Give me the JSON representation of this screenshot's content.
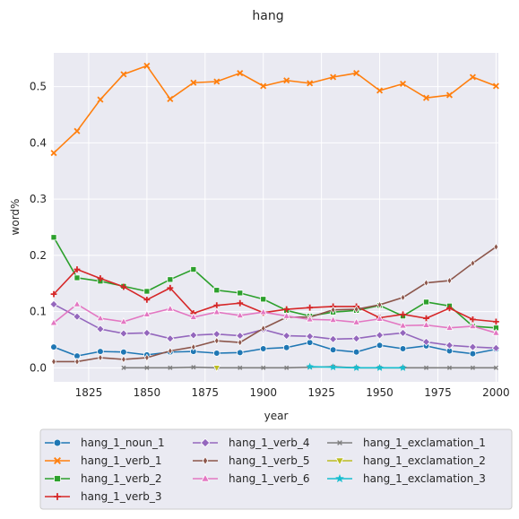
{
  "chart_data": {
    "type": "line",
    "title": "hang",
    "xlabel": "year",
    "ylabel": "word%",
    "xlim": [
      1810,
      2001
    ],
    "ylim": [
      -0.025,
      0.56
    ],
    "xticks": [
      1825,
      1850,
      1875,
      1900,
      1925,
      1950,
      1975,
      2000
    ],
    "yticks": [
      0.0,
      0.1,
      0.2,
      0.3,
      0.4,
      0.5
    ],
    "grid": true,
    "legend_position": "bottom",
    "series": [
      {
        "name": "hang_1_noun_1",
        "color": "#1f77b4",
        "marker": "circle",
        "x": [
          1810,
          1820,
          1830,
          1840,
          1850,
          1860,
          1870,
          1880,
          1890,
          1900,
          1910,
          1920,
          1930,
          1940,
          1950,
          1960,
          1970,
          1980,
          1990,
          2000
        ],
        "y": [
          0.037,
          0.021,
          0.029,
          0.028,
          0.023,
          0.028,
          0.029,
          0.026,
          0.027,
          0.034,
          0.036,
          0.045,
          0.032,
          0.028,
          0.04,
          0.034,
          0.039,
          0.03,
          0.025,
          0.033
        ]
      },
      {
        "name": "hang_1_verb_1",
        "color": "#ff7f0e",
        "marker": "x",
        "x": [
          1810,
          1820,
          1830,
          1840,
          1850,
          1860,
          1870,
          1880,
          1890,
          1900,
          1910,
          1920,
          1930,
          1940,
          1950,
          1960,
          1970,
          1980,
          1990,
          2000
        ],
        "y": [
          0.382,
          0.421,
          0.477,
          0.522,
          0.537,
          0.478,
          0.507,
          0.509,
          0.524,
          0.501,
          0.511,
          0.506,
          0.517,
          0.524,
          0.493,
          0.505,
          0.48,
          0.485,
          0.517,
          0.501
        ]
      },
      {
        "name": "hang_1_verb_2",
        "color": "#2ca02c",
        "marker": "square",
        "x": [
          1810,
          1820,
          1830,
          1840,
          1850,
          1860,
          1870,
          1880,
          1890,
          1900,
          1910,
          1920,
          1930,
          1940,
          1950,
          1960,
          1970,
          1980,
          1990,
          2000
        ],
        "y": [
          0.232,
          0.16,
          0.154,
          0.145,
          0.136,
          0.157,
          0.175,
          0.138,
          0.133,
          0.122,
          0.102,
          0.092,
          0.099,
          0.102,
          0.111,
          0.092,
          0.117,
          0.11,
          0.074,
          0.071
        ]
      },
      {
        "name": "hang_1_verb_3",
        "color": "#d62728",
        "marker": "plus",
        "x": [
          1810,
          1820,
          1830,
          1840,
          1850,
          1860,
          1870,
          1880,
          1890,
          1900,
          1910,
          1920,
          1930,
          1940,
          1950,
          1960,
          1970,
          1980,
          1990,
          2000
        ],
        "y": [
          0.131,
          0.175,
          0.159,
          0.144,
          0.121,
          0.142,
          0.097,
          0.111,
          0.115,
          0.098,
          0.104,
          0.107,
          0.109,
          0.109,
          0.089,
          0.095,
          0.088,
          0.106,
          0.086,
          0.082
        ]
      },
      {
        "name": "hang_1_verb_4",
        "color": "#9467bd",
        "marker": "diamond",
        "x": [
          1810,
          1820,
          1830,
          1840,
          1850,
          1860,
          1870,
          1880,
          1890,
          1900,
          1910,
          1920,
          1930,
          1940,
          1950,
          1960,
          1970,
          1980,
          1990,
          2000
        ],
        "y": [
          0.113,
          0.091,
          0.069,
          0.061,
          0.062,
          0.052,
          0.058,
          0.06,
          0.057,
          0.068,
          0.057,
          0.056,
          0.051,
          0.052,
          0.058,
          0.062,
          0.046,
          0.04,
          0.037,
          0.035
        ]
      },
      {
        "name": "hang_1_verb_5",
        "color": "#8c564b",
        "marker": "thin_diamond",
        "x": [
          1810,
          1820,
          1830,
          1840,
          1850,
          1860,
          1870,
          1880,
          1890,
          1900,
          1910,
          1920,
          1930,
          1940,
          1950,
          1960,
          1970,
          1980,
          1990,
          2000
        ],
        "y": [
          0.011,
          0.011,
          0.018,
          0.015,
          0.018,
          0.03,
          0.037,
          0.048,
          0.045,
          0.07,
          0.09,
          0.09,
          0.103,
          0.104,
          0.112,
          0.125,
          0.151,
          0.155,
          0.186,
          0.215
        ]
      },
      {
        "name": "hang_1_verb_6",
        "color": "#e377c2",
        "marker": "triangle-up",
        "x": [
          1810,
          1820,
          1830,
          1840,
          1850,
          1860,
          1870,
          1880,
          1890,
          1900,
          1910,
          1920,
          1930,
          1940,
          1950,
          1960,
          1970,
          1980,
          1990,
          2000
        ],
        "y": [
          0.08,
          0.113,
          0.088,
          0.082,
          0.095,
          0.105,
          0.09,
          0.099,
          0.093,
          0.099,
          0.092,
          0.086,
          0.085,
          0.081,
          0.087,
          0.075,
          0.076,
          0.071,
          0.074,
          0.062
        ]
      },
      {
        "name": "hang_1_exclamation_1",
        "color": "#7f7f7f",
        "marker": "x-small",
        "x": [
          1840,
          1850,
          1860,
          1870,
          1880,
          1890,
          1900,
          1910,
          1920,
          1930,
          1940,
          1950,
          1960,
          1970,
          1980,
          1990,
          2000
        ],
        "y": [
          0.0,
          0.0,
          0.0,
          0.001,
          0.0,
          0.0,
          0.0,
          0.0,
          0.001,
          0.002,
          0.0,
          0.0,
          0.0,
          0.0,
          0.0,
          0.0,
          0.0
        ]
      },
      {
        "name": "hang_1_exclamation_2",
        "color": "#bcbd22",
        "marker": "triangle-down",
        "x": [
          1880
        ],
        "y": [
          0.0
        ]
      },
      {
        "name": "hang_1_exclamation_3",
        "color": "#17becf",
        "marker": "star",
        "x": [
          1920,
          1930,
          1940,
          1950,
          1960
        ],
        "y": [
          0.002,
          0.001,
          0.0,
          0.0,
          0.0
        ]
      }
    ]
  }
}
